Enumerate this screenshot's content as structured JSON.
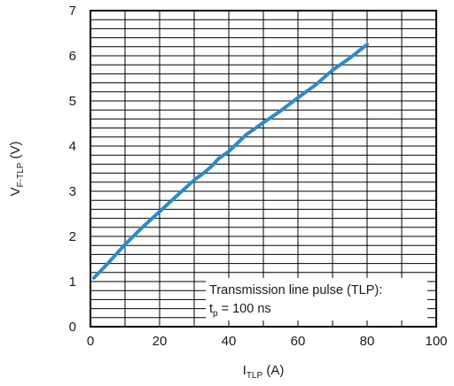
{
  "chart_data": {
    "type": "line",
    "x_label": {
      "main": "I",
      "sub": "TLP",
      "unit": " (A)"
    },
    "y_label": {
      "main": "V",
      "sub": "F-TLP",
      "unit": " (V)"
    },
    "xlim": [
      0,
      100
    ],
    "ylim": [
      0,
      7
    ],
    "x_ticks": [
      "0",
      "20",
      "40",
      "60",
      "80",
      "100"
    ],
    "y_ticks": [
      "0",
      "1",
      "2",
      "3",
      "4",
      "5",
      "6",
      "7"
    ],
    "x_major_step": 10,
    "y_minor_step": 0.2,
    "grid": true,
    "line_color": "#2f8ac7",
    "series": [
      {
        "x": [
          1,
          5,
          10,
          15,
          20,
          25,
          30,
          33,
          35,
          37,
          40,
          45,
          50,
          55,
          60,
          65,
          70,
          75,
          80
        ],
        "y": [
          1.08,
          1.4,
          1.82,
          2.2,
          2.55,
          2.9,
          3.25,
          3.42,
          3.55,
          3.72,
          3.88,
          4.25,
          4.52,
          4.78,
          5.07,
          5.35,
          5.68,
          5.95,
          6.25
        ]
      }
    ],
    "annotation": {
      "line1": "Transmission line pulse (TLP):",
      "line2_main": "t",
      "line2_sub": "p",
      "line2_rest": " = 100 ns"
    }
  }
}
